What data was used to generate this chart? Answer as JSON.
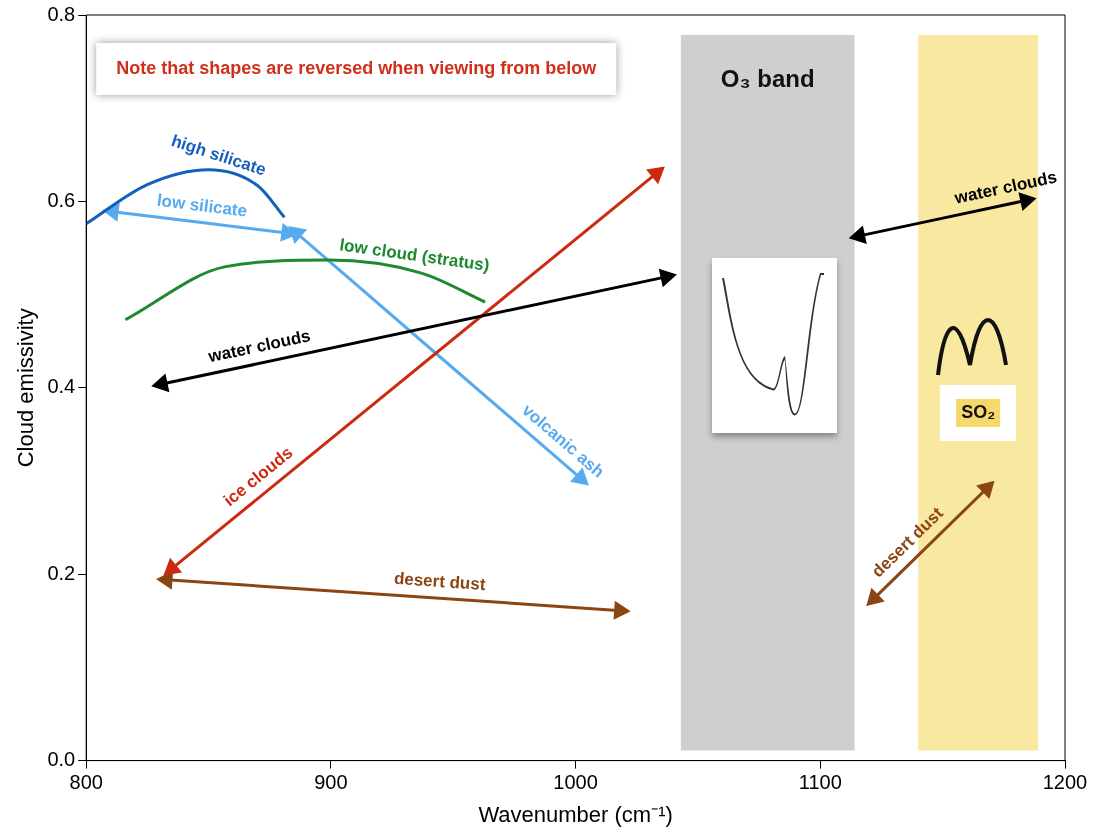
{
  "chart_data": {
    "type": "line",
    "xlabel": "Wavenumber (cm⁻¹)",
    "ylabel": "Cloud emissivity",
    "xlim": [
      800,
      1200
    ],
    "xticks": [
      800,
      900,
      1000,
      1100,
      1200
    ],
    "ylim": [
      0,
      0.8
    ],
    "yticks": [
      {
        "value": 0,
        "label": "0.0"
      },
      {
        "value": 0.2,
        "label": "0.2"
      },
      {
        "value": 0.4,
        "label": "0.4"
      },
      {
        "value": 0.6,
        "label": "0.6"
      },
      {
        "value": 0.8,
        "label": "0.8"
      }
    ],
    "legend": false,
    "series": [
      {
        "name": "high silicate",
        "color": "#1560bd",
        "marker": "none",
        "x": [
          800,
          825,
          850,
          870,
          881
        ],
        "values": [
          0.576,
          0.618,
          0.634,
          0.617,
          0.583
        ]
      },
      {
        "name": "low silicate",
        "color": "#56aaf0",
        "marker": "triangle",
        "x": [
          811,
          882
        ],
        "values": [
          0.589,
          0.566
        ]
      },
      {
        "name": "low cloud (stratus)",
        "color": "#1e8a2e",
        "marker": "none",
        "x": [
          816,
          857,
          899,
          937,
          963
        ],
        "values": [
          0.473,
          0.53,
          0.537,
          0.523,
          0.492
        ]
      },
      {
        "name": "water clouds",
        "color": "#000000",
        "marker": "triangle",
        "x": [
          831,
          1037
        ],
        "values": [
          0.404,
          0.519
        ]
      },
      {
        "name": "ice clouds",
        "color": "#cc2a10",
        "marker": "triangle",
        "x": [
          835,
          1033
        ],
        "values": [
          0.206,
          0.63
        ]
      },
      {
        "name": "volcanic ash",
        "color": "#56aaf0",
        "marker": "triangle",
        "x": [
          886,
          1002
        ],
        "values": [
          0.566,
          0.303
        ]
      },
      {
        "name": "desert dust",
        "color": "#8b4513",
        "marker": "triangle",
        "x": [
          833,
          1018
        ],
        "values": [
          0.194,
          0.161
        ]
      },
      {
        "name": "water clouds",
        "color": "#000000",
        "marker": "triangle",
        "x": [
          1116,
          1184
        ],
        "values": [
          0.563,
          0.601
        ]
      },
      {
        "name": "desert dust",
        "color": "#8b4513",
        "marker": "triangle",
        "x": [
          1122,
          1168
        ],
        "values": [
          0.174,
          0.292
        ]
      }
    ],
    "bands": [
      {
        "axis": "x",
        "from": 1043,
        "to": 1114,
        "label": "O₃ band",
        "color": "#cfcfcf"
      },
      {
        "axis": "x",
        "from": 1140,
        "to": 1189,
        "label": "SO₂",
        "color": "#f8e8a0"
      }
    ],
    "annotations": [
      "Note that shapes are reversed when viewing from below"
    ]
  }
}
